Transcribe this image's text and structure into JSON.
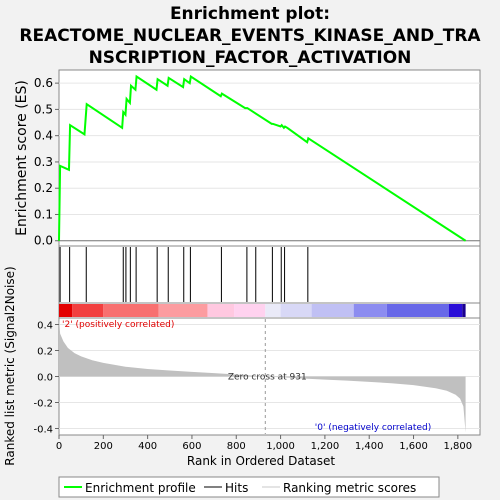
{
  "chart_data": {
    "type": "line",
    "title_line1": "Enrichment plot:",
    "title_line2": "REACTOME_NUCLEAR_EVENTS_KINASE_AND_TRA",
    "title_line3": "NSCRIPTION_FACTOR_ACTIVATION",
    "top_panel": {
      "ylabel": "Enrichment score (ES)",
      "ylim": [
        -0.02,
        0.65
      ],
      "yticks": [
        "0.0",
        "0.1",
        "0.2",
        "0.3",
        "0.4",
        "0.5",
        "0.6"
      ],
      "ytick_values": [
        0.0,
        0.1,
        0.2,
        0.3,
        0.4,
        0.5,
        0.6
      ],
      "line_color": "#00ff00",
      "es_profile": {
        "x": [
          0,
          5,
          45,
          50,
          115,
          125,
          285,
          290,
          300,
          305,
          320,
          325,
          345,
          350,
          440,
          445,
          490,
          495,
          560,
          565,
          590,
          595,
          730,
          735,
          840,
          850,
          960,
          965,
          1000,
          1005,
          1015,
          1020,
          1030,
          1120,
          1125,
          1835
        ],
        "y": [
          0.0,
          0.285,
          0.27,
          0.44,
          0.405,
          0.52,
          0.43,
          0.49,
          0.48,
          0.54,
          0.525,
          0.59,
          0.575,
          0.625,
          0.575,
          0.615,
          0.59,
          0.62,
          0.585,
          0.615,
          0.6,
          0.625,
          0.55,
          0.56,
          0.505,
          0.505,
          0.445,
          0.445,
          0.435,
          0.44,
          0.43,
          0.435,
          0.43,
          0.375,
          0.39,
          0.0
        ]
      }
    },
    "hits": [
      5,
      48,
      123,
      290,
      302,
      322,
      348,
      443,
      493,
      563,
      593,
      733,
      848,
      888,
      963,
      1003,
      1018,
      1123
    ],
    "bottom_panel": {
      "ylabel": "Ranked list metric (Signal2Noise)",
      "xlabel": "Rank in Ordered Dataset",
      "ylim": [
        -0.45,
        0.45
      ],
      "yticks": [
        "-0.4",
        "-0.2",
        "0.0",
        "0.2",
        "0.4"
      ],
      "ytick_values": [
        -0.4,
        -0.2,
        0.0,
        0.2,
        0.4
      ],
      "xlim": [
        0,
        1900
      ],
      "xticks": [
        "0",
        "200",
        "400",
        "600",
        "800",
        "1,000",
        "1,200",
        "1,400",
        "1,600",
        "1,800"
      ],
      "xtick_values": [
        0,
        200,
        400,
        600,
        800,
        1000,
        1200,
        1400,
        1600,
        1800
      ],
      "zero_cross_label": "Zero cross at 931",
      "zero_cross": 931,
      "pos_label": "'2' (positively correlated)",
      "neg_label": "'0' (negatively correlated)",
      "metric_profile": {
        "x": [
          0,
          5,
          20,
          40,
          70,
          100,
          150,
          200,
          300,
          400,
          500,
          600,
          700,
          800,
          931,
          1000,
          1100,
          1200,
          1300,
          1400,
          1500,
          1600,
          1700,
          1750,
          1790,
          1810,
          1825,
          1835
        ],
        "y": [
          0.46,
          0.33,
          0.27,
          0.22,
          0.18,
          0.155,
          0.125,
          0.105,
          0.075,
          0.058,
          0.046,
          0.036,
          0.026,
          0.015,
          0.0,
          -0.006,
          -0.015,
          -0.024,
          -0.032,
          -0.041,
          -0.052,
          -0.066,
          -0.09,
          -0.11,
          -0.14,
          -0.17,
          -0.23,
          -0.43
        ]
      }
    },
    "colorbar_segments": [
      {
        "from": 0,
        "to": 60,
        "color": "#e30000"
      },
      {
        "from": 60,
        "to": 200,
        "color": "#f24040"
      },
      {
        "from": 200,
        "to": 450,
        "color": "#f87070"
      },
      {
        "from": 450,
        "to": 670,
        "color": "#fc9ca0"
      },
      {
        "from": 670,
        "to": 790,
        "color": "#ffc8e0"
      },
      {
        "from": 790,
        "to": 931,
        "color": "#ffd2ef"
      },
      {
        "from": 931,
        "to": 1000,
        "color": "#eaeaf8"
      },
      {
        "from": 1000,
        "to": 1140,
        "color": "#d8d8f6"
      },
      {
        "from": 1140,
        "to": 1330,
        "color": "#c0c0f4"
      },
      {
        "from": 1330,
        "to": 1480,
        "color": "#8c8cf0"
      },
      {
        "from": 1480,
        "to": 1760,
        "color": "#6868e8"
      },
      {
        "from": 1760,
        "to": 1820,
        "color": "#2a0ed8"
      },
      {
        "from": 1820,
        "to": 1835,
        "color": "#1a0090"
      }
    ],
    "legend": {
      "placement": "bottom",
      "items": [
        "Enrichment profile",
        "Hits",
        "Ranking metric scores"
      ],
      "colors": [
        "#00ff00",
        "#000000",
        "#c8c8c8"
      ]
    }
  }
}
